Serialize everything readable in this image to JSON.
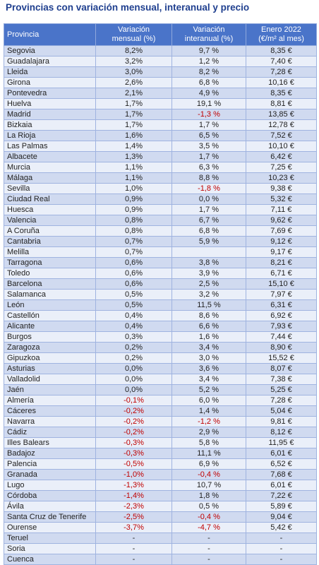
{
  "title": "Provincias con variación mensual, interanual y precio",
  "table": {
    "header": [
      [
        "Provincia"
      ],
      [
        "Variación",
        "mensual (%)"
      ],
      [
        "Variación",
        "interanual (%)"
      ],
      [
        "Enero 2022",
        "(€/m² al mes)"
      ]
    ],
    "rows": [
      [
        "Segovia",
        "8,2%",
        "9,7 %",
        "8,35 €"
      ],
      [
        "Guadalajara",
        "3,2%",
        "1,2 %",
        "7,40 €"
      ],
      [
        "Lleida",
        "3,0%",
        "8,2 %",
        "7,28 €"
      ],
      [
        "Girona",
        "2,6%",
        "6,8 %",
        "10,16 €"
      ],
      [
        "Pontevedra",
        "2,1%",
        "4,9 %",
        "8,35 €"
      ],
      [
        "Huelva",
        "1,7%",
        "19,1 %",
        "8,81 €"
      ],
      [
        "Madrid",
        "1,7%",
        "-1,3 %",
        "13,85 €"
      ],
      [
        "Bizkaia",
        "1,7%",
        "1,7 %",
        "12,78 €"
      ],
      [
        "La Rioja",
        "1,6%",
        "6,5 %",
        "7,52 €"
      ],
      [
        "Las Palmas",
        "1,4%",
        "3,5 %",
        "10,10 €"
      ],
      [
        "Albacete",
        "1,3%",
        "1,7 %",
        "6,42 €"
      ],
      [
        "Murcia",
        "1,1%",
        "6,3 %",
        "7,25 €"
      ],
      [
        "Málaga",
        "1,1%",
        "8,8 %",
        "10,23 €"
      ],
      [
        "Sevilla",
        "1,0%",
        "-1,8 %",
        "9,38 €"
      ],
      [
        "Ciudad Real",
        "0,9%",
        "0,0 %",
        "5,32 €"
      ],
      [
        "Huesca",
        "0,9%",
        "1,7 %",
        "7,11 €"
      ],
      [
        "Valencia",
        "0,8%",
        "6,7 %",
        "9,62 €"
      ],
      [
        "A Coruña",
        "0,8%",
        "6,8 %",
        "7,69 €"
      ],
      [
        "Cantabria",
        "0,7%",
        "5,9 %",
        "9,12 €"
      ],
      [
        "Melilla",
        "0,7%",
        null,
        "9,17 €"
      ],
      [
        "Tarragona",
        "0,6%",
        "3,8 %",
        "8,21 €"
      ],
      [
        "Toledo",
        "0,6%",
        "3,9 %",
        "6,71 €"
      ],
      [
        "Barcelona",
        "0,6%",
        "2,5 %",
        "15,10 €"
      ],
      [
        "Salamanca",
        "0,5%",
        "3,2 %",
        "7,97 €"
      ],
      [
        "León",
        "0,5%",
        "11,5 %",
        "6,31 €"
      ],
      [
        "Castellón",
        "0,4%",
        "8,6 %",
        "6,92 €"
      ],
      [
        "Alicante",
        "0,4%",
        "6,6 %",
        "7,93 €"
      ],
      [
        "Burgos",
        "0,3%",
        "1,6 %",
        "7,44 €"
      ],
      [
        "Zaragoza",
        "0,2%",
        "3,4 %",
        "8,90 €"
      ],
      [
        "Gipuzkoa",
        "0,2%",
        "3,0 %",
        "15,52 €"
      ],
      [
        "Asturias",
        "0,0%",
        "3,6 %",
        "8,07 €"
      ],
      [
        "Valladolid",
        "0,0%",
        "3,4 %",
        "7,38 €"
      ],
      [
        "Jaén",
        "0,0%",
        "5,2 %",
        "5,25 €"
      ],
      [
        "Almería",
        "-0,1%",
        "6,0 %",
        "7,28 €"
      ],
      [
        "Cáceres",
        "-0,2%",
        "1,4 %",
        "5,04 €"
      ],
      [
        "Navarra",
        "-0,2%",
        "-1,2 %",
        "9,81 €"
      ],
      [
        "Cádiz",
        "-0,2%",
        "2,9 %",
        "8,12 €"
      ],
      [
        "Illes Balears",
        "-0,3%",
        "5,8 %",
        "11,95 €"
      ],
      [
        "Badajoz",
        "-0,3%",
        "11,1 %",
        "6,01 €"
      ],
      [
        "Palencia",
        "-0,5%",
        "6,9 %",
        "6,52 €"
      ],
      [
        "Granada",
        "-1,0%",
        "-0,4 %",
        "7,68 €"
      ],
      [
        "Lugo",
        "-1,3%",
        "10,7 %",
        "6,01 €"
      ],
      [
        "Córdoba",
        "-1,4%",
        "1,8 %",
        "7,22 €"
      ],
      [
        "Ávila",
        "-2,3%",
        "0,5 %",
        "5,89 €"
      ],
      [
        "Santa Cruz de Tenerife",
        "-2,5%",
        "-0,4 %",
        "9,04 €"
      ],
      [
        "Ourense",
        "-3,7%",
        "-4,7 %",
        "5,42 €"
      ],
      [
        "Teruel",
        "-",
        "-",
        "-"
      ],
      [
        "Soria",
        "-",
        "-",
        "-"
      ],
      [
        "Cuenca",
        "-",
        "-",
        "-"
      ]
    ]
  }
}
